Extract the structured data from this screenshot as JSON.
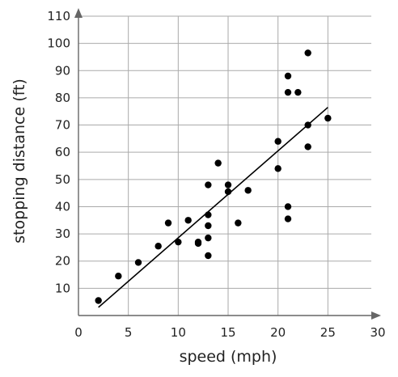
{
  "chart_data": {
    "type": "scatter",
    "xlabel": "speed (mph)",
    "ylabel": "stopping distance (ft)",
    "xlim": [
      0,
      30
    ],
    "ylim": [
      0,
      110
    ],
    "x_ticks": [
      0,
      5,
      10,
      15,
      20,
      25,
      30
    ],
    "y_ticks": [
      10,
      20,
      30,
      40,
      50,
      60,
      70,
      80,
      90,
      100,
      110
    ],
    "grid": true,
    "series": [
      {
        "points": [
          [
            2,
            5.5
          ],
          [
            4,
            14.5
          ],
          [
            6,
            19.5
          ],
          [
            8,
            25.5
          ],
          [
            9,
            34
          ],
          [
            10,
            27
          ],
          [
            11,
            35
          ],
          [
            12,
            26.5
          ],
          [
            12,
            27
          ],
          [
            13,
            22
          ],
          [
            13,
            28.5
          ],
          [
            13,
            33
          ],
          [
            13,
            37
          ],
          [
            13,
            48
          ],
          [
            14,
            56
          ],
          [
            15,
            45.5
          ],
          [
            15,
            48
          ],
          [
            16,
            34
          ],
          [
            17,
            46
          ],
          [
            20,
            54
          ],
          [
            20,
            64
          ],
          [
            21,
            35.5
          ],
          [
            21,
            40
          ],
          [
            21,
            82
          ],
          [
            21,
            88
          ],
          [
            22,
            82
          ],
          [
            23,
            62
          ],
          [
            23,
            70
          ],
          [
            23,
            96.5
          ],
          [
            25,
            72.5
          ]
        ]
      }
    ],
    "trend_line": {
      "x": [
        2,
        25
      ],
      "y": [
        3,
        76.5
      ]
    }
  }
}
